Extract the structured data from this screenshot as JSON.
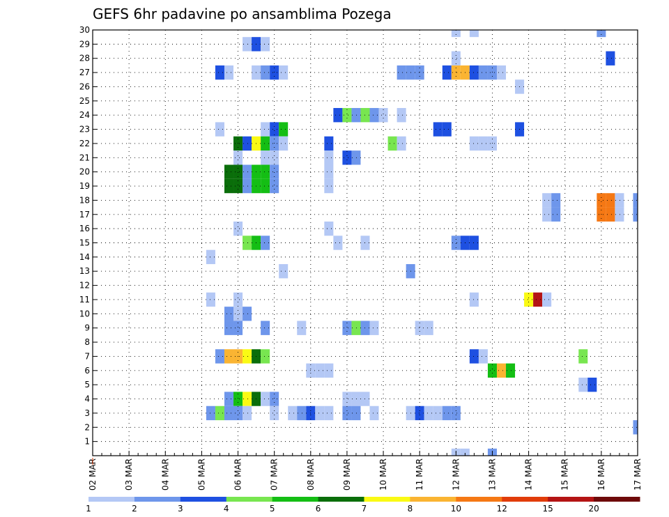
{
  "chart_data": {
    "type": "heatmap",
    "title": "GEFS 6hr padavine po ansamblima Pozega",
    "xlabel": "",
    "ylabel": "",
    "x_unit": "6-hour steps from 02 MAR 00Z",
    "x_range": [
      0,
      60
    ],
    "y_range": [
      0,
      30
    ],
    "x_tick_labels": [
      "02 MAR",
      "03 MAR",
      "04 MAR",
      "05 MAR",
      "06 MAR",
      "07 MAR",
      "08 MAR",
      "09 MAR",
      "10 MAR",
      "11 MAR",
      "12 MAR",
      "13 MAR",
      "14 MAR",
      "15 MAR",
      "16 MAR",
      "17 MAR"
    ],
    "y_tick_labels": [
      "1",
      "2",
      "3",
      "4",
      "5",
      "6",
      "7",
      "8",
      "9",
      "10",
      "11",
      "12",
      "13",
      "14",
      "15",
      "16",
      "17",
      "18",
      "19",
      "20",
      "21",
      "22",
      "23",
      "24",
      "25",
      "26",
      "27",
      "28",
      "29",
      "30"
    ],
    "grid": true,
    "legend": {
      "placement": "bottom",
      "labels": [
        "1",
        "2",
        "3",
        "4",
        "5",
        "6",
        "7",
        "8",
        "10",
        "12",
        "15",
        "20"
      ],
      "colors": [
        "#b4c8f5",
        "#6e96eb",
        "#1e50e1",
        "#78e650",
        "#14be14",
        "#0a6e0a",
        "#fafa14",
        "#fab432",
        "#f57814",
        "#e13c0a",
        "#b41414",
        "#6e0a0a"
      ]
    },
    "levels": [
      1,
      2,
      3,
      4,
      5,
      6,
      7,
      8,
      10,
      12,
      15,
      20
    ],
    "cells": [
      {
        "m": 30,
        "t": 40,
        "v": 1
      },
      {
        "m": 30,
        "t": 42,
        "v": 1
      },
      {
        "m": 30,
        "t": 56,
        "v": 2
      },
      {
        "m": 29,
        "t": 17,
        "v": 1
      },
      {
        "m": 29,
        "t": 18,
        "v": 3
      },
      {
        "m": 29,
        "t": 19,
        "v": 1
      },
      {
        "m": 28,
        "t": 40,
        "v": 1
      },
      {
        "m": 28,
        "t": 57,
        "v": 3
      },
      {
        "m": 27,
        "t": 14,
        "v": 3
      },
      {
        "m": 27,
        "t": 15,
        "v": 1
      },
      {
        "m": 27,
        "t": 18,
        "v": 1
      },
      {
        "m": 27,
        "t": 19,
        "v": 2
      },
      {
        "m": 27,
        "t": 20,
        "v": 3
      },
      {
        "m": 27,
        "t": 21,
        "v": 1
      },
      {
        "m": 27,
        "t": 34,
        "v": 2
      },
      {
        "m": 27,
        "t": 35,
        "v": 2
      },
      {
        "m": 27,
        "t": 36,
        "v": 2
      },
      {
        "m": 27,
        "t": 39,
        "v": 3
      },
      {
        "m": 27,
        "t": 40,
        "v": 8
      },
      {
        "m": 27,
        "t": 41,
        "v": 8
      },
      {
        "m": 27,
        "t": 42,
        "v": 3
      },
      {
        "m": 27,
        "t": 43,
        "v": 2
      },
      {
        "m": 27,
        "t": 44,
        "v": 2
      },
      {
        "m": 27,
        "t": 45,
        "v": 1
      },
      {
        "m": 26,
        "t": 47,
        "v": 1
      },
      {
        "m": 24,
        "t": 27,
        "v": 3
      },
      {
        "m": 24,
        "t": 28,
        "v": 4
      },
      {
        "m": 24,
        "t": 29,
        "v": 2
      },
      {
        "m": 24,
        "t": 30,
        "v": 4
      },
      {
        "m": 24,
        "t": 31,
        "v": 2
      },
      {
        "m": 24,
        "t": 32,
        "v": 1
      },
      {
        "m": 24,
        "t": 34,
        "v": 1
      },
      {
        "m": 23,
        "t": 14,
        "v": 1
      },
      {
        "m": 23,
        "t": 19,
        "v": 1
      },
      {
        "m": 23,
        "t": 20,
        "v": 3
      },
      {
        "m": 23,
        "t": 21,
        "v": 5
      },
      {
        "m": 23,
        "t": 38,
        "v": 3
      },
      {
        "m": 23,
        "t": 39,
        "v": 3
      },
      {
        "m": 23,
        "t": 47,
        "v": 3
      },
      {
        "m": 22,
        "t": 16,
        "v": 6
      },
      {
        "m": 22,
        "t": 17,
        "v": 3
      },
      {
        "m": 22,
        "t": 18,
        "v": 7
      },
      {
        "m": 22,
        "t": 19,
        "v": 5
      },
      {
        "m": 22,
        "t": 20,
        "v": 2
      },
      {
        "m": 22,
        "t": 21,
        "v": 1
      },
      {
        "m": 22,
        "t": 26,
        "v": 3
      },
      {
        "m": 22,
        "t": 33,
        "v": 4
      },
      {
        "m": 22,
        "t": 34,
        "v": 1
      },
      {
        "m": 22,
        "t": 42,
        "v": 1
      },
      {
        "m": 22,
        "t": 43,
        "v": 1
      },
      {
        "m": 22,
        "t": 44,
        "v": 1
      },
      {
        "m": 21,
        "t": 16,
        "v": 1
      },
      {
        "m": 21,
        "t": 19,
        "v": 1
      },
      {
        "m": 21,
        "t": 20,
        "v": 1
      },
      {
        "m": 21,
        "t": 26,
        "v": 1
      },
      {
        "m": 21,
        "t": 28,
        "v": 3
      },
      {
        "m": 21,
        "t": 29,
        "v": 2
      },
      {
        "m": 20,
        "t": 15,
        "v": 6
      },
      {
        "m": 20,
        "t": 16,
        "v": 6
      },
      {
        "m": 20,
        "t": 17,
        "v": 2
      },
      {
        "m": 20,
        "t": 18,
        "v": 5
      },
      {
        "m": 20,
        "t": 19,
        "v": 5
      },
      {
        "m": 20,
        "t": 20,
        "v": 2
      },
      {
        "m": 20,
        "t": 26,
        "v": 1
      },
      {
        "m": 19,
        "t": 15,
        "v": 6
      },
      {
        "m": 19,
        "t": 16,
        "v": 6
      },
      {
        "m": 19,
        "t": 17,
        "v": 2
      },
      {
        "m": 19,
        "t": 18,
        "v": 5
      },
      {
        "m": 19,
        "t": 19,
        "v": 5
      },
      {
        "m": 19,
        "t": 20,
        "v": 2
      },
      {
        "m": 19,
        "t": 26,
        "v": 1
      },
      {
        "m": 18,
        "t": 50,
        "v": 1
      },
      {
        "m": 18,
        "t": 51,
        "v": 2
      },
      {
        "m": 18,
        "t": 56,
        "v": 10
      },
      {
        "m": 18,
        "t": 57,
        "v": 10
      },
      {
        "m": 18,
        "t": 58,
        "v": 1
      },
      {
        "m": 18,
        "t": 60,
        "v": 2
      },
      {
        "m": 17,
        "t": 50,
        "v": 1
      },
      {
        "m": 17,
        "t": 51,
        "v": 2
      },
      {
        "m": 17,
        "t": 56,
        "v": 10
      },
      {
        "m": 17,
        "t": 57,
        "v": 10
      },
      {
        "m": 17,
        "t": 58,
        "v": 1
      },
      {
        "m": 17,
        "t": 60,
        "v": 2
      },
      {
        "m": 16,
        "t": 16,
        "v": 1
      },
      {
        "m": 16,
        "t": 26,
        "v": 1
      },
      {
        "m": 15,
        "t": 17,
        "v": 4
      },
      {
        "m": 15,
        "t": 18,
        "v": 5
      },
      {
        "m": 15,
        "t": 19,
        "v": 2
      },
      {
        "m": 15,
        "t": 27,
        "v": 1
      },
      {
        "m": 15,
        "t": 30,
        "v": 1
      },
      {
        "m": 15,
        "t": 40,
        "v": 2
      },
      {
        "m": 15,
        "t": 41,
        "v": 3
      },
      {
        "m": 15,
        "t": 42,
        "v": 3
      },
      {
        "m": 14,
        "t": 13,
        "v": 1
      },
      {
        "m": 13,
        "t": 21,
        "v": 1
      },
      {
        "m": 13,
        "t": 35,
        "v": 2
      },
      {
        "m": 11,
        "t": 13,
        "v": 1
      },
      {
        "m": 11,
        "t": 16,
        "v": 1
      },
      {
        "m": 11,
        "t": 42,
        "v": 1
      },
      {
        "m": 11,
        "t": 48,
        "v": 7
      },
      {
        "m": 11,
        "t": 49,
        "v": 15
      },
      {
        "m": 11,
        "t": 50,
        "v": 1
      },
      {
        "m": 10,
        "t": 15,
        "v": 2
      },
      {
        "m": 10,
        "t": 16,
        "v": 1
      },
      {
        "m": 10,
        "t": 17,
        "v": 2
      },
      {
        "m": 9,
        "t": 15,
        "v": 2
      },
      {
        "m": 9,
        "t": 16,
        "v": 2
      },
      {
        "m": 9,
        "t": 19,
        "v": 2
      },
      {
        "m": 9,
        "t": 23,
        "v": 1
      },
      {
        "m": 9,
        "t": 28,
        "v": 2
      },
      {
        "m": 9,
        "t": 29,
        "v": 4
      },
      {
        "m": 9,
        "t": 30,
        "v": 2
      },
      {
        "m": 9,
        "t": 31,
        "v": 1
      },
      {
        "m": 9,
        "t": 36,
        "v": 1
      },
      {
        "m": 9,
        "t": 37,
        "v": 1
      },
      {
        "m": 7,
        "t": 14,
        "v": 2
      },
      {
        "m": 7,
        "t": 15,
        "v": 8
      },
      {
        "m": 7,
        "t": 16,
        "v": 8
      },
      {
        "m": 7,
        "t": 17,
        "v": 7
      },
      {
        "m": 7,
        "t": 18,
        "v": 6
      },
      {
        "m": 7,
        "t": 19,
        "v": 4
      },
      {
        "m": 7,
        "t": 42,
        "v": 3
      },
      {
        "m": 7,
        "t": 43,
        "v": 1
      },
      {
        "m": 7,
        "t": 54,
        "v": 4
      },
      {
        "m": 6,
        "t": 24,
        "v": 1
      },
      {
        "m": 6,
        "t": 25,
        "v": 1
      },
      {
        "m": 6,
        "t": 26,
        "v": 1
      },
      {
        "m": 6,
        "t": 44,
        "v": 5
      },
      {
        "m": 6,
        "t": 45,
        "v": 8
      },
      {
        "m": 6,
        "t": 46,
        "v": 5
      },
      {
        "m": 5,
        "t": 54,
        "v": 1
      },
      {
        "m": 5,
        "t": 55,
        "v": 3
      },
      {
        "m": 4,
        "t": 15,
        "v": 2
      },
      {
        "m": 4,
        "t": 16,
        "v": 5
      },
      {
        "m": 4,
        "t": 17,
        "v": 7
      },
      {
        "m": 4,
        "t": 18,
        "v": 6
      },
      {
        "m": 4,
        "t": 19,
        "v": 1
      },
      {
        "m": 4,
        "t": 20,
        "v": 2
      },
      {
        "m": 4,
        "t": 28,
        "v": 1
      },
      {
        "m": 4,
        "t": 29,
        "v": 1
      },
      {
        "m": 4,
        "t": 30,
        "v": 1
      },
      {
        "m": 3,
        "t": 13,
        "v": 2
      },
      {
        "m": 3,
        "t": 14,
        "v": 4
      },
      {
        "m": 3,
        "t": 15,
        "v": 2
      },
      {
        "m": 3,
        "t": 16,
        "v": 2
      },
      {
        "m": 3,
        "t": 17,
        "v": 1
      },
      {
        "m": 3,
        "t": 20,
        "v": 1
      },
      {
        "m": 3,
        "t": 22,
        "v": 1
      },
      {
        "m": 3,
        "t": 23,
        "v": 2
      },
      {
        "m": 3,
        "t": 24,
        "v": 3
      },
      {
        "m": 3,
        "t": 25,
        "v": 1
      },
      {
        "m": 3,
        "t": 26,
        "v": 1
      },
      {
        "m": 3,
        "t": 28,
        "v": 2
      },
      {
        "m": 3,
        "t": 29,
        "v": 2
      },
      {
        "m": 3,
        "t": 31,
        "v": 1
      },
      {
        "m": 3,
        "t": 35,
        "v": 1
      },
      {
        "m": 3,
        "t": 36,
        "v": 3
      },
      {
        "m": 3,
        "t": 37,
        "v": 1
      },
      {
        "m": 3,
        "t": 38,
        "v": 1
      },
      {
        "m": 3,
        "t": 39,
        "v": 2
      },
      {
        "m": 3,
        "t": 40,
        "v": 2
      },
      {
        "m": 2,
        "t": 60,
        "v": 2
      },
      {
        "m": 0,
        "t": 40,
        "v": 1
      },
      {
        "m": 0,
        "t": 41,
        "v": 1
      },
      {
        "m": 0,
        "t": 44,
        "v": 2
      }
    ]
  }
}
